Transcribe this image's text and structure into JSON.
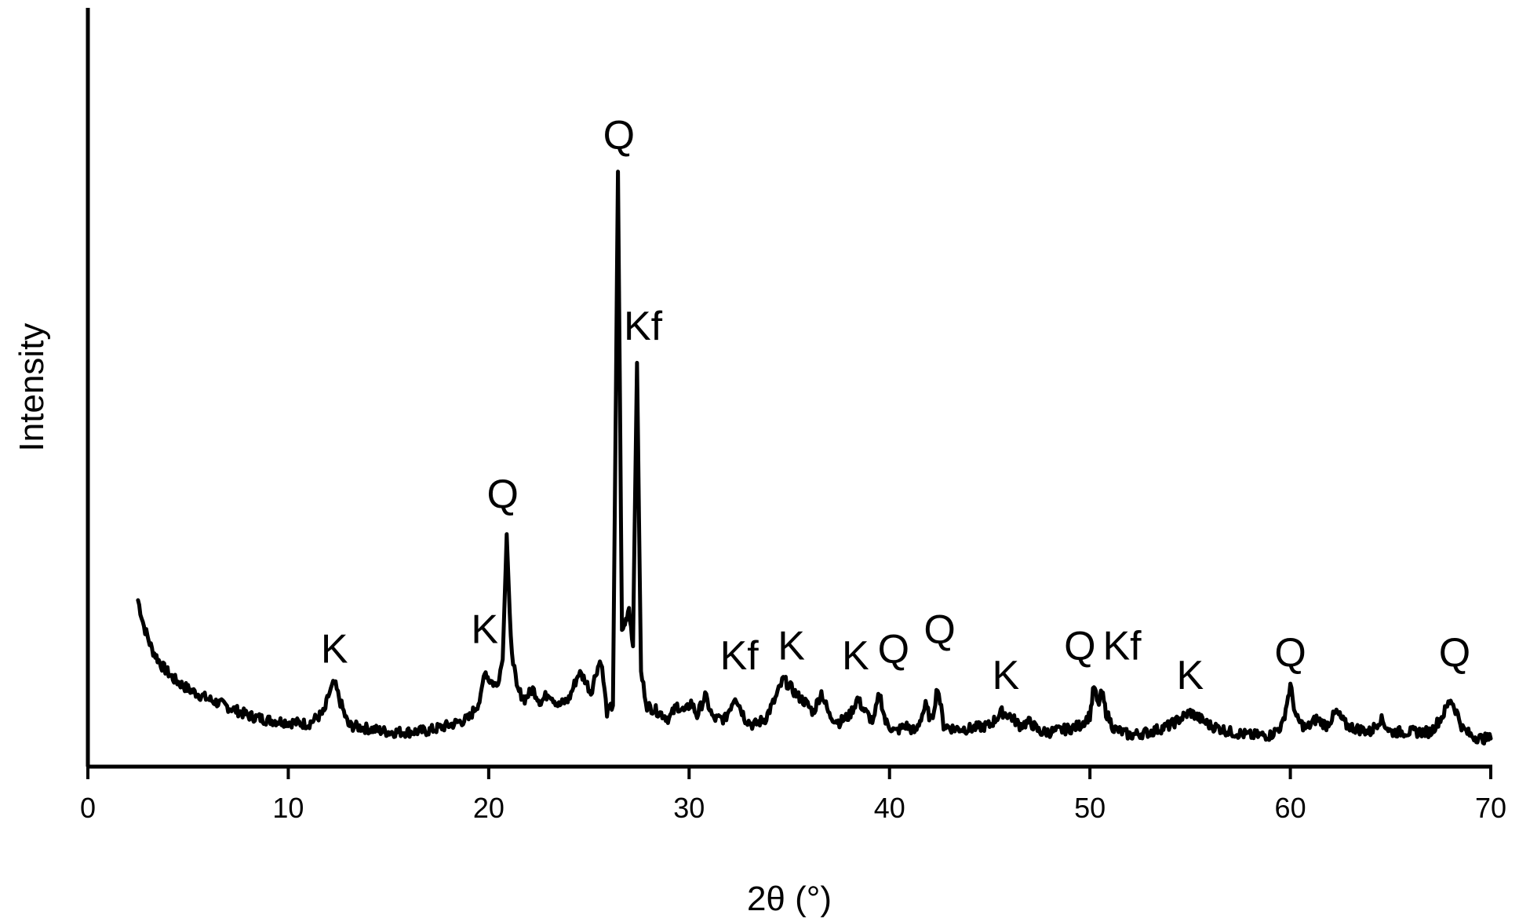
{
  "chart_data": {
    "type": "line",
    "title": "",
    "xlabel": "2θ (°)",
    "ylabel": "Intensity",
    "xlim": [
      0,
      70
    ],
    "ylim": [
      0,
      100
    ],
    "xticks": [
      0,
      10,
      20,
      30,
      40,
      50,
      60,
      70
    ],
    "yticks_shown": false,
    "grid": false,
    "legend": "none",
    "line_color": "#000000",
    "series": [
      {
        "x": [
          2.5,
          2.8,
          3.2,
          3.7,
          4.3,
          5.0,
          6.0,
          7.0,
          8.0,
          9.0,
          10.0,
          11.0,
          11.8,
          12.0,
          12.3,
          12.6,
          13.0,
          14.0,
          15.0,
          16.0,
          17.0,
          18.0,
          19.0,
          19.6,
          19.8,
          20.0,
          20.4,
          20.7,
          20.9,
          21.1,
          21.4,
          21.8,
          22.2,
          22.6,
          23.0,
          23.5,
          24.0,
          24.5,
          24.8,
          25.1,
          25.4,
          25.6,
          25.9,
          26.2,
          26.45,
          26.65,
          26.85,
          27.0,
          27.2,
          27.4,
          27.6,
          27.9,
          28.5,
          29.0,
          29.4,
          29.8,
          30.1,
          30.4,
          30.8,
          31.2,
          31.8,
          32.3,
          32.8,
          33.2,
          33.8,
          34.3,
          34.7,
          35.0,
          35.4,
          35.8,
          36.2,
          36.6,
          37.0,
          37.5,
          38.0,
          38.4,
          38.8,
          39.2,
          39.5,
          39.8,
          40.3,
          40.8,
          41.3,
          41.8,
          42.1,
          42.4,
          42.7,
          43.2,
          44.0,
          45.0,
          45.6,
          46.0,
          46.5,
          47.0,
          47.5,
          48.0,
          49.0,
          49.5,
          50.0,
          50.2,
          50.4,
          50.6,
          50.8,
          51.2,
          52.0,
          53.0,
          54.0,
          54.5,
          55.0,
          55.5,
          56.0,
          57.0,
          58.0,
          59.0,
          59.6,
          60.0,
          60.3,
          60.8,
          61.3,
          61.8,
          62.3,
          62.8,
          63.3,
          64.0,
          64.5,
          65.0,
          66.0,
          67.0,
          67.6,
          68.0,
          68.3,
          68.6,
          69.0,
          69.5,
          70.0
        ],
        "y": [
          23.0,
          19.0,
          15.5,
          13.0,
          11.0,
          9.5,
          8.0,
          6.8,
          5.5,
          4.8,
          4.5,
          4.2,
          6.0,
          8.5,
          10.5,
          7.5,
          4.0,
          3.5,
          3.0,
          3.0,
          3.2,
          4.0,
          5.0,
          8.0,
          12.5,
          11.0,
          10.0,
          14.0,
          33.0,
          17.0,
          9.5,
          8.0,
          9.5,
          7.5,
          9.0,
          7.0,
          8.0,
          12.0,
          11.0,
          9.0,
          12.5,
          14.0,
          6.0,
          7.0,
          88.0,
          18.0,
          20.0,
          22.0,
          16.0,
          59.0,
          12.0,
          7.0,
          6.0,
          5.0,
          7.0,
          6.0,
          7.5,
          5.5,
          8.5,
          5.0,
          5.0,
          8.5,
          5.0,
          4.0,
          5.0,
          8.0,
          11.0,
          10.0,
          8.5,
          7.5,
          6.0,
          9.0,
          5.5,
          4.5,
          5.5,
          8.0,
          6.0,
          4.5,
          9.0,
          4.5,
          3.0,
          4.0,
          3.0,
          7.0,
          4.5,
          10.0,
          4.0,
          3.5,
          3.5,
          4.0,
          6.0,
          5.5,
          4.0,
          4.5,
          3.0,
          3.0,
          3.5,
          4.0,
          5.5,
          10.0,
          7.0,
          9.0,
          6.0,
          3.5,
          2.5,
          3.0,
          4.0,
          5.0,
          6.0,
          5.0,
          4.0,
          3.0,
          2.5,
          2.5,
          4.0,
          10.0,
          5.0,
          3.5,
          5.0,
          4.0,
          6.0,
          4.0,
          3.5,
          3.0,
          5.0,
          3.0,
          3.0,
          3.0,
          5.5,
          8.0,
          6.0,
          3.5,
          2.5,
          2.0,
          2.0
        ]
      }
    ],
    "annotations": [
      {
        "text": "K",
        "x": 12.3,
        "y": 13.5
      },
      {
        "text": "K",
        "x": 19.8,
        "y": 16.5
      },
      {
        "text": "Q",
        "x": 20.7,
        "y": 37.0
      },
      {
        "text": "Q",
        "x": 26.5,
        "y": 91.5
      },
      {
        "text": "Kf",
        "x": 27.7,
        "y": 62.5
      },
      {
        "text": "Kf",
        "x": 32.5,
        "y": 12.5
      },
      {
        "text": "K",
        "x": 35.1,
        "y": 14.0
      },
      {
        "text": "K",
        "x": 38.3,
        "y": 12.5
      },
      {
        "text": "Q",
        "x": 40.2,
        "y": 13.5
      },
      {
        "text": "Q",
        "x": 42.5,
        "y": 16.5
      },
      {
        "text": "K",
        "x": 45.8,
        "y": 9.5
      },
      {
        "text": "Q",
        "x": 49.5,
        "y": 14.0
      },
      {
        "text": "Kf",
        "x": 51.6,
        "y": 14.0
      },
      {
        "text": "K",
        "x": 55.0,
        "y": 9.5
      },
      {
        "text": "Q",
        "x": 60.0,
        "y": 13.0
      },
      {
        "text": "Q",
        "x": 68.2,
        "y": 13.0
      }
    ]
  }
}
